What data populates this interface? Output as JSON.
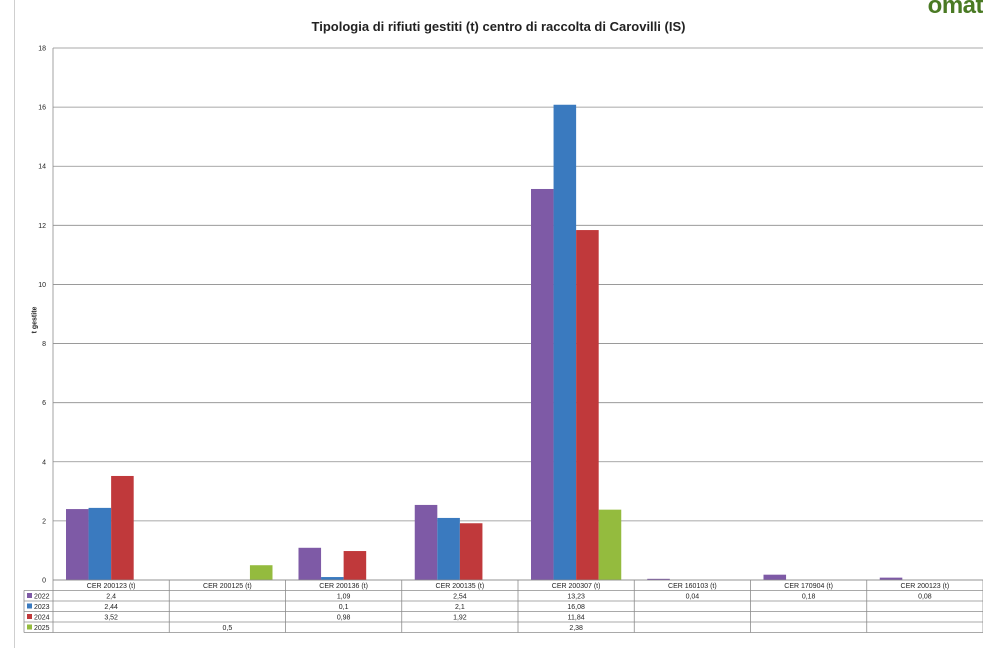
{
  "brand": {
    "logo_text": "omat"
  },
  "chart_data": {
    "type": "bar",
    "title": "Tipologia di rifiuti gestiti (t) centro di raccolta di Carovilli (IS)",
    "xlabel": "",
    "ylabel": "t gestite",
    "ylim": [
      0,
      18
    ],
    "yticks": [
      0,
      2,
      4,
      6,
      8,
      10,
      12,
      14,
      16,
      18
    ],
    "grid": true,
    "legend": "data-table",
    "categories": [
      "CER 200123 (t)",
      "CER 200125 (t)",
      "CER 200136 (t)",
      "CER 200135 (t)",
      "CER 200307 (t)",
      "CER 160103 (t)",
      "CER 170904 (t)",
      "CER 200123 (t)"
    ],
    "series": [
      {
        "name": "2022",
        "color": "#7e5aa6",
        "values": [
          2.4,
          null,
          1.09,
          2.54,
          13.23,
          0.04,
          0.18,
          0.08
        ],
        "labels": [
          "2,4",
          "",
          "1,09",
          "2,54",
          "13,23",
          "0,04",
          "0,18",
          "0,08"
        ]
      },
      {
        "name": "2023",
        "color": "#3a7abf",
        "values": [
          2.44,
          null,
          0.1,
          2.1,
          16.08,
          null,
          null,
          null
        ],
        "labels": [
          "2,44",
          "",
          "0,1",
          "2,1",
          "16,08",
          "",
          "",
          ""
        ]
      },
      {
        "name": "2024",
        "color": "#c0393b",
        "values": [
          3.52,
          null,
          0.98,
          1.92,
          11.84,
          null,
          null,
          null
        ],
        "labels": [
          "3,52",
          "",
          "0,98",
          "1,92",
          "11,84",
          "",
          "",
          ""
        ]
      },
      {
        "name": "2025",
        "color": "#94bb3e",
        "values": [
          null,
          0.5,
          null,
          null,
          2.38,
          null,
          null,
          null
        ],
        "labels": [
          "",
          "0,5",
          "",
          "",
          "2,38",
          "",
          "",
          ""
        ]
      }
    ]
  }
}
